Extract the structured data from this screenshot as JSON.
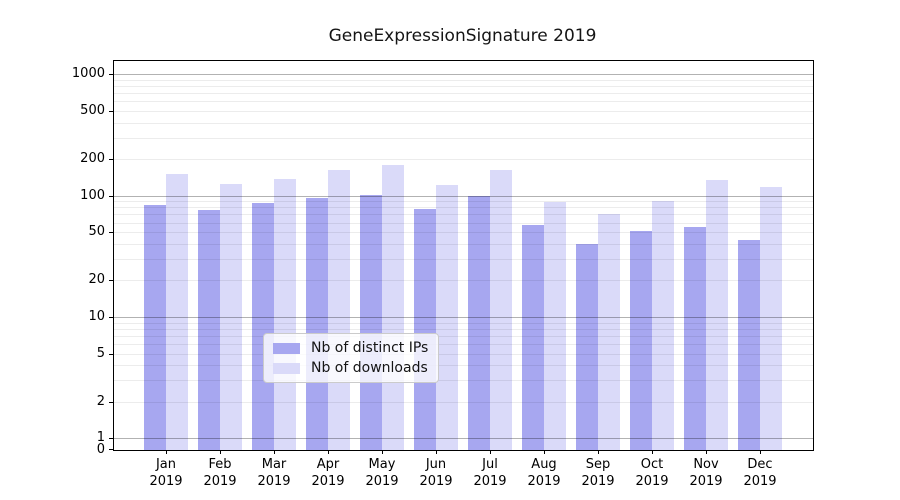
{
  "chart_data": {
    "type": "bar",
    "title": "GeneExpressionSignature 2019",
    "year_label": "2019",
    "months": [
      "Jan",
      "Feb",
      "Mar",
      "Apr",
      "May",
      "Jun",
      "Jul",
      "Aug",
      "Sep",
      "Oct",
      "Nov",
      "Dec"
    ],
    "categories": [
      "Jan 2019",
      "Feb 2019",
      "Mar 2019",
      "Apr 2019",
      "May 2019",
      "Jun 2019",
      "Jul 2019",
      "Aug 2019",
      "Sep 2019",
      "Oct 2019",
      "Nov 2019",
      "Dec 2019"
    ],
    "series": [
      {
        "name": "Nb of distinct IPs",
        "color": "#a7a7f0",
        "values": [
          83,
          76,
          87,
          96,
          101,
          78,
          100,
          57,
          40,
          51,
          55,
          43
        ]
      },
      {
        "name": "Nb of downloads",
        "color": "#dadaf9",
        "values": [
          152,
          124,
          137,
          163,
          180,
          122,
          163,
          89,
          70,
          90,
          135,
          118
        ]
      }
    ],
    "yscale": "log",
    "ylim": [
      0,
      1290
    ],
    "yticks": [
      0,
      1,
      2,
      5,
      10,
      20,
      50,
      100,
      200,
      500,
      1000
    ],
    "decade_ticks": [
      1,
      10,
      100,
      1000
    ],
    "minor_gridlines": [
      3,
      4,
      6,
      7,
      8,
      9,
      30,
      40,
      60,
      70,
      80,
      90,
      300,
      400,
      600,
      700,
      800,
      900
    ],
    "grid": true,
    "legend_position": "lower-center",
    "axis_color": "#000000",
    "background_color": "#ffffff"
  }
}
